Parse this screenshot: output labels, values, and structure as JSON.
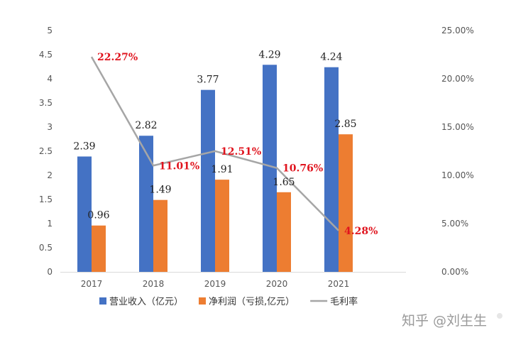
{
  "chart_data": {
    "type": "bar",
    "categories": [
      "2017",
      "2018",
      "2019",
      "2020",
      "2021"
    ],
    "series": [
      {
        "name": "营业收入（亿元）",
        "kind": "bar",
        "axis": "left",
        "color": "#4472c4",
        "values": [
          2.39,
          2.82,
          3.77,
          4.29,
          4.24
        ],
        "labels": [
          "2.39",
          "2.82",
          "3.77",
          "4.29",
          "4.24"
        ]
      },
      {
        "name": "净利润（亏损,亿元）",
        "kind": "bar",
        "axis": "left",
        "color": "#ed7d31",
        "values": [
          0.96,
          1.49,
          1.91,
          1.65,
          2.85
        ],
        "labels": [
          "0.96",
          "1.49",
          "1.91",
          "1.65",
          "2.85"
        ]
      },
      {
        "name": "毛利率",
        "kind": "line",
        "axis": "right",
        "color": "#a6a6a6",
        "values": [
          22.27,
          11.01,
          12.51,
          10.76,
          4.28
        ],
        "labels": [
          "22.27%",
          "11.01%",
          "12.51%",
          "10.76%",
          "4.28%"
        ]
      }
    ],
    "ylim": [
      0,
      5
    ],
    "y_ticks": [
      "0",
      "0.5",
      "1",
      "1.5",
      "2",
      "2.5",
      "3",
      "3.5",
      "4",
      "4.5",
      "5"
    ],
    "y2lim": [
      0,
      25
    ],
    "y2_ticks": [
      "0.00%",
      "5.00%",
      "10.00%",
      "15.00%",
      "20.00%",
      "25.00%"
    ],
    "label_color": "#e0141e",
    "grid": false,
    "legend_position": "bottom"
  },
  "watermark": "知乎 @刘生生"
}
